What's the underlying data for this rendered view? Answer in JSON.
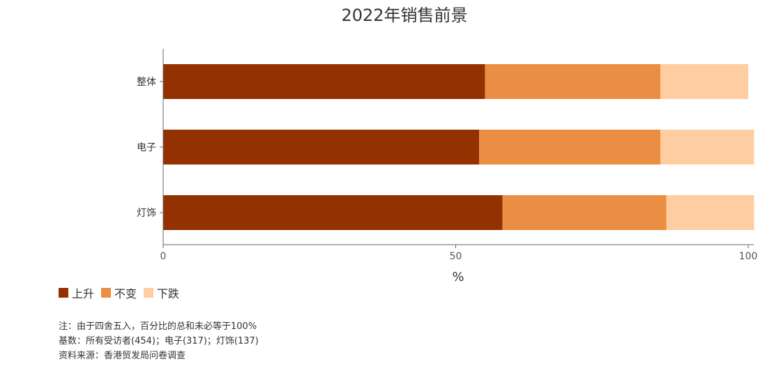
{
  "chart_data": {
    "type": "bar",
    "orientation": "horizontal",
    "stacked": true,
    "title": "2022年销售前景",
    "categories": [
      "整体",
      "电子",
      "灯饰"
    ],
    "series": [
      {
        "name": "上升",
        "color": "#933200",
        "values": [
          55,
          54,
          58
        ]
      },
      {
        "name": "不变",
        "color": "#E98E42",
        "values": [
          30,
          31,
          28
        ]
      },
      {
        "name": "下跌",
        "color": "#FECDA2",
        "values": [
          15,
          16,
          15
        ]
      }
    ],
    "xlabel": "%",
    "xlim": [
      0,
      100
    ],
    "xticks": [
      "0",
      "50",
      "100"
    ],
    "grid": false,
    "legend_position": "bottom-left"
  },
  "notes": [
    "注：由于四舍五入，百分比的总和未必等于100%",
    "基数：所有受访者(454)；电子(317)；灯饰(137)",
    "资料来源：香港贸发局问卷调查"
  ]
}
